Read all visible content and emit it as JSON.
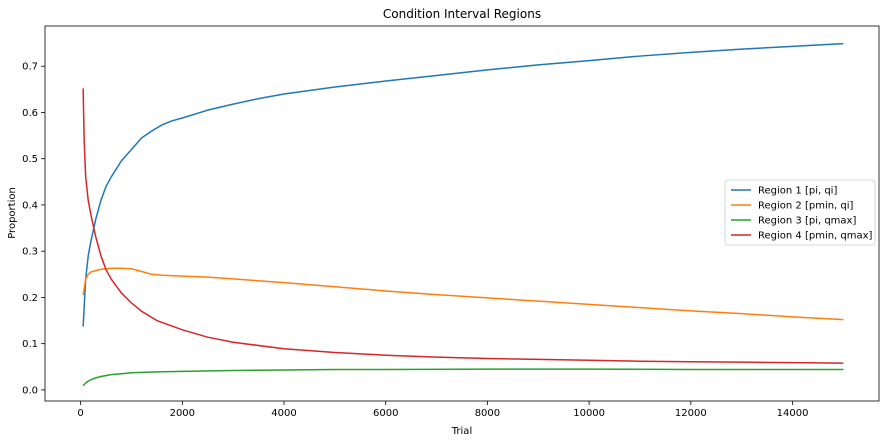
{
  "chart_data": {
    "type": "line",
    "title": "Condition Interval Regions",
    "xlabel": "Trial",
    "ylabel": "Proportion",
    "xlim": [
      -700,
      15700
    ],
    "ylim": [
      -0.024,
      0.787
    ],
    "xticks": [
      0,
      2000,
      4000,
      6000,
      8000,
      10000,
      12000,
      14000
    ],
    "yticks": [
      0.0,
      0.1,
      0.2,
      0.3,
      0.4,
      0.5,
      0.6,
      0.7
    ],
    "ytick_labels": [
      "0.0",
      "0.1",
      "0.2",
      "0.3",
      "0.4",
      "0.5",
      "0.6",
      "0.7"
    ],
    "legend_position": "center-right",
    "series": [
      {
        "name": "Region 1 [pi, qi]",
        "color": "#1f77b4",
        "x": [
          50,
          100,
          150,
          200,
          300,
          400,
          500,
          600,
          800,
          1000,
          1200,
          1400,
          1600,
          1800,
          2000,
          2500,
          3000,
          3500,
          4000,
          5000,
          6000,
          7000,
          8000,
          9000,
          10000,
          11000,
          12000,
          13000,
          14000,
          15000
        ],
        "y": [
          0.137,
          0.24,
          0.29,
          0.32,
          0.37,
          0.41,
          0.44,
          0.46,
          0.495,
          0.52,
          0.545,
          0.56,
          0.573,
          0.582,
          0.588,
          0.605,
          0.618,
          0.63,
          0.64,
          0.655,
          0.668,
          0.68,
          0.692,
          0.703,
          0.712,
          0.722,
          0.73,
          0.737,
          0.743,
          0.749
        ]
      },
      {
        "name": "Region 2 [pmin, qi]",
        "color": "#ff7f0e",
        "x": [
          50,
          100,
          150,
          200,
          300,
          400,
          600,
          800,
          1000,
          1200,
          1400,
          1600,
          2000,
          2500,
          3000,
          4000,
          5000,
          6000,
          7000,
          8000,
          9000,
          10000,
          11000,
          12000,
          13000,
          14000,
          15000
        ],
        "y": [
          0.205,
          0.24,
          0.25,
          0.255,
          0.258,
          0.261,
          0.263,
          0.263,
          0.262,
          0.256,
          0.25,
          0.248,
          0.246,
          0.244,
          0.24,
          0.232,
          0.223,
          0.214,
          0.206,
          0.199,
          0.192,
          0.185,
          0.178,
          0.171,
          0.165,
          0.158,
          0.152
        ]
      },
      {
        "name": "Region 3 [pi, qmax]",
        "color": "#2ca02c",
        "x": [
          50,
          100,
          150,
          200,
          300,
          400,
          600,
          800,
          1000,
          1500,
          2000,
          3000,
          4000,
          5000,
          6000,
          8000,
          10000,
          12000,
          15000
        ],
        "y": [
          0.009,
          0.015,
          0.019,
          0.022,
          0.026,
          0.029,
          0.033,
          0.035,
          0.037,
          0.039,
          0.04,
          0.042,
          0.043,
          0.044,
          0.044,
          0.045,
          0.045,
          0.044,
          0.044
        ]
      },
      {
        "name": "Region 4 [pmin, qmax]",
        "color": "#d62728",
        "x": [
          50,
          70,
          100,
          150,
          200,
          300,
          400,
          500,
          600,
          800,
          1000,
          1200,
          1500,
          2000,
          2500,
          3000,
          4000,
          5000,
          6000,
          7000,
          8000,
          9000,
          10000,
          11000,
          12000,
          13000,
          14000,
          15000
        ],
        "y": [
          0.652,
          0.54,
          0.46,
          0.41,
          0.38,
          0.33,
          0.29,
          0.26,
          0.24,
          0.21,
          0.188,
          0.17,
          0.15,
          0.13,
          0.114,
          0.103,
          0.089,
          0.081,
          0.075,
          0.071,
          0.068,
          0.066,
          0.064,
          0.062,
          0.061,
          0.06,
          0.059,
          0.058
        ]
      }
    ]
  }
}
